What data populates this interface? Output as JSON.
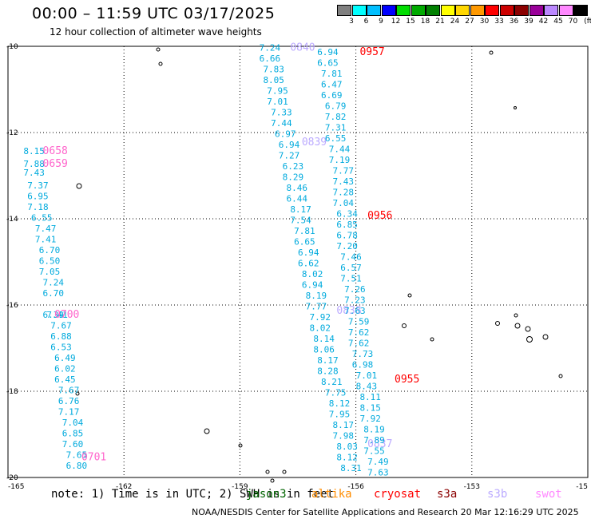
{
  "title": "00:00 – 11:59 UTC 03/17/2025",
  "subtitle": "12 hour collection of altimeter wave heights",
  "colorbar": {
    "unit": "(ft)",
    "colors": [
      "#808080",
      "#00ffff",
      "#00bfff",
      "#0000ff",
      "#00dd00",
      "#00aa00",
      "#008000",
      "#ffff00",
      "#ffd700",
      "#ff9900",
      "#ff0000",
      "#cc0000",
      "#8b0000",
      "#990099",
      "#bb88ff",
      "#ff88ff",
      "#000000"
    ],
    "labels": [
      "3",
      "6",
      "9",
      "12",
      "15",
      "18",
      "21",
      "24",
      "27",
      "30",
      "33",
      "36",
      "39",
      "42",
      "45",
      "70"
    ]
  },
  "legend": [
    {
      "label": "note:  1) Time is in UTC; 2) SWH is in feet",
      "color": "#000000"
    },
    {
      "label": "jason3",
      "color": "#006400"
    },
    {
      "label": "altika",
      "color": "#ff8c00"
    },
    {
      "label": "cryosat",
      "color": "#ff0000"
    },
    {
      "label": "s3a",
      "color": "#8b0000"
    },
    {
      "label": "s3b",
      "color": "#bbaaff"
    },
    {
      "label": "swot",
      "color": "#ff88ff"
    }
  ],
  "footer": "NOAA/NESDIS Center for Satellite Applications and Research   20 Mar 12:16:29 UTC 2025",
  "chart_data": {
    "type": "scatter",
    "xlim": [
      -165,
      -150
    ],
    "ylim": [
      -20,
      -10
    ],
    "x_ticks": [
      "-165",
      "-162",
      "-159",
      "-156",
      "-153",
      "-15"
    ],
    "y_ticks": [
      "-10",
      "-12",
      "-14",
      "-16",
      "-18",
      "-20"
    ],
    "grid": true,
    "tracks": [
      {
        "satellite": "swot",
        "color": "#00aadd",
        "label_color": "#ff66cc",
        "time_labels": [
          {
            "text": "0658",
            "lon": -164.1,
            "lat": -12.5
          },
          {
            "text": "0659",
            "lon": -164.1,
            "lat": -12.8
          },
          {
            "text": "0700",
            "lon": -163.8,
            "lat": -16.3
          },
          {
            "text": "0701",
            "lon": -163.1,
            "lat": -19.6
          }
        ],
        "values": [
          {
            "text": "8.15",
            "lon": -164.6,
            "lat": -12.5
          },
          {
            "text": "7.88",
            "lon": -164.6,
            "lat": -12.8
          },
          {
            "text": "7.43",
            "lon": -164.6,
            "lat": -13.0
          },
          {
            "text": "7.37",
            "lon": -164.5,
            "lat": -13.3
          },
          {
            "text": "6.95",
            "lon": -164.5,
            "lat": -13.55
          },
          {
            "text": "7.18",
            "lon": -164.5,
            "lat": -13.8
          },
          {
            "text": "6.55",
            "lon": -164.4,
            "lat": -14.05
          },
          {
            "text": "7.47",
            "lon": -164.3,
            "lat": -14.3
          },
          {
            "text": "7.41",
            "lon": -164.3,
            "lat": -14.55
          },
          {
            "text": "6.70",
            "lon": -164.2,
            "lat": -14.8
          },
          {
            "text": "6.50",
            "lon": -164.2,
            "lat": -15.05
          },
          {
            "text": "7.05",
            "lon": -164.2,
            "lat": -15.3
          },
          {
            "text": "7.24",
            "lon": -164.1,
            "lat": -15.55
          },
          {
            "text": "6.70",
            "lon": -164.1,
            "lat": -15.8
          },
          {
            "text": "6.39",
            "lon": -164.1,
            "lat": -16.3
          },
          {
            "text": "7.41",
            "lon": -164.0,
            "lat": -16.3
          },
          {
            "text": "7.67",
            "lon": -163.9,
            "lat": -16.55
          },
          {
            "text": "6.88",
            "lon": -163.9,
            "lat": -16.8
          },
          {
            "text": "6.53",
            "lon": -163.9,
            "lat": -17.05
          },
          {
            "text": "6.49",
            "lon": -163.8,
            "lat": -17.3
          },
          {
            "text": "6.02",
            "lon": -163.8,
            "lat": -17.55
          },
          {
            "text": "6.45",
            "lon": -163.8,
            "lat": -17.8
          },
          {
            "text": "7.67",
            "lon": -163.7,
            "lat": -18.05
          },
          {
            "text": "6.76",
            "lon": -163.7,
            "lat": -18.3
          },
          {
            "text": "7.17",
            "lon": -163.7,
            "lat": -18.55
          },
          {
            "text": "7.04",
            "lon": -163.6,
            "lat": -18.8
          },
          {
            "text": "6.85",
            "lon": -163.6,
            "lat": -19.05
          },
          {
            "text": "7.60",
            "lon": -163.6,
            "lat": -19.3
          },
          {
            "text": "7.65",
            "lon": -163.5,
            "lat": -19.55
          },
          {
            "text": "6.80",
            "lon": -163.5,
            "lat": -19.8
          }
        ]
      },
      {
        "satellite": "s3b",
        "color": "#00aadd",
        "label_color": "#bbaaff",
        "time_labels": [
          {
            "text": "0840",
            "lon": -157.7,
            "lat": -10.1
          },
          {
            "text": "0839",
            "lon": -157.4,
            "lat": -12.3
          },
          {
            "text": "0838",
            "lon": -156.5,
            "lat": -16.2
          },
          {
            "text": "0837",
            "lon": -155.7,
            "lat": -19.3
          }
        ],
        "values": [
          {
            "text": "7.24",
            "lon": -158.5,
            "lat": -10.1
          },
          {
            "text": "6.66",
            "lon": -158.5,
            "lat": -10.35
          },
          {
            "text": "7.83",
            "lon": -158.4,
            "lat": -10.6
          },
          {
            "text": "8.05",
            "lon": -158.4,
            "lat": -10.85
          },
          {
            "text": "7.95",
            "lon": -158.3,
            "lat": -11.1
          },
          {
            "text": "7.01",
            "lon": -158.3,
            "lat": -11.35
          },
          {
            "text": "7.33",
            "lon": -158.2,
            "lat": -11.6
          },
          {
            "text": "7.44",
            "lon": -158.2,
            "lat": -11.85
          },
          {
            "text": "6.97",
            "lon": -158.1,
            "lat": -12.1
          },
          {
            "text": "6.94",
            "lon": -158.0,
            "lat": -12.35
          },
          {
            "text": "7.27",
            "lon": -158.0,
            "lat": -12.6
          },
          {
            "text": "6.23",
            "lon": -157.9,
            "lat": -12.85
          },
          {
            "text": "8.29",
            "lon": -157.9,
            "lat": -13.1
          },
          {
            "text": "8.46",
            "lon": -157.8,
            "lat": -13.35
          },
          {
            "text": "6.44",
            "lon": -157.8,
            "lat": -13.6
          },
          {
            "text": "8.17",
            "lon": -157.7,
            "lat": -13.85
          },
          {
            "text": "7.54",
            "lon": -157.7,
            "lat": -14.1
          },
          {
            "text": "7.81",
            "lon": -157.6,
            "lat": -14.35
          },
          {
            "text": "6.65",
            "lon": -157.6,
            "lat": -14.6
          },
          {
            "text": "6.94",
            "lon": -157.5,
            "lat": -14.85
          },
          {
            "text": "6.62",
            "lon": -157.5,
            "lat": -15.1
          },
          {
            "text": "8.02",
            "lon": -157.4,
            "lat": -15.35
          },
          {
            "text": "6.94",
            "lon": -157.4,
            "lat": -15.6
          },
          {
            "text": "8.19",
            "lon": -157.3,
            "lat": -15.85
          },
          {
            "text": "7.77",
            "lon": -157.3,
            "lat": -16.1
          },
          {
            "text": "7.92",
            "lon": -157.2,
            "lat": -16.35
          },
          {
            "text": "8.02",
            "lon": -157.2,
            "lat": -16.6
          },
          {
            "text": "8.14",
            "lon": -157.1,
            "lat": -16.85
          },
          {
            "text": "8.06",
            "lon": -157.1,
            "lat": -17.1
          },
          {
            "text": "8.17",
            "lon": -157.0,
            "lat": -17.35
          },
          {
            "text": "8.28",
            "lon": -157.0,
            "lat": -17.6
          },
          {
            "text": "8.21",
            "lon": -156.9,
            "lat": -17.85
          },
          {
            "text": "7.75",
            "lon": -156.8,
            "lat": -18.1
          },
          {
            "text": "8.12",
            "lon": -156.7,
            "lat": -18.35
          },
          {
            "text": "7.95",
            "lon": -156.7,
            "lat": -18.6
          },
          {
            "text": "8.17",
            "lon": -156.6,
            "lat": -18.85
          },
          {
            "text": "7.98",
            "lon": -156.6,
            "lat": -19.1
          },
          {
            "text": "8.03",
            "lon": -156.5,
            "lat": -19.35
          },
          {
            "text": "8.12",
            "lon": -156.5,
            "lat": -19.6
          },
          {
            "text": "8.31",
            "lon": -156.4,
            "lat": -19.85
          }
        ]
      },
      {
        "satellite": "cryosat",
        "color": "#00aadd",
        "label_color": "#ff0000",
        "time_labels": [
          {
            "text": "0957",
            "lon": -155.9,
            "lat": -10.2
          },
          {
            "text": "0956",
            "lon": -155.7,
            "lat": -14.0
          },
          {
            "text": "0955",
            "lon": -155.0,
            "lat": -17.8
          }
        ],
        "values": [
          {
            "text": "6.94",
            "lon": -157.0,
            "lat": -10.2
          },
          {
            "text": "6.65",
            "lon": -157.0,
            "lat": -10.45
          },
          {
            "text": "7.81",
            "lon": -156.9,
            "lat": -10.7
          },
          {
            "text": "6.47",
            "lon": -156.9,
            "lat": -10.95
          },
          {
            "text": "6.69",
            "lon": -156.9,
            "lat": -11.2
          },
          {
            "text": "6.79",
            "lon": -156.8,
            "lat": -11.45
          },
          {
            "text": "7.82",
            "lon": -156.8,
            "lat": -11.7
          },
          {
            "text": "7.31",
            "lon": -156.8,
            "lat": -11.95
          },
          {
            "text": "6.55",
            "lon": -156.8,
            "lat": -12.2
          },
          {
            "text": "7.44",
            "lon": -156.7,
            "lat": -12.45
          },
          {
            "text": "7.19",
            "lon": -156.7,
            "lat": -12.7
          },
          {
            "text": "7.77",
            "lon": -156.6,
            "lat": -12.95
          },
          {
            "text": "7.43",
            "lon": -156.6,
            "lat": -13.2
          },
          {
            "text": "7.28",
            "lon": -156.6,
            "lat": -13.45
          },
          {
            "text": "7.04",
            "lon": -156.6,
            "lat": -13.7
          },
          {
            "text": "6.34",
            "lon": -156.5,
            "lat": -13.95
          },
          {
            "text": "6.85",
            "lon": -156.5,
            "lat": -14.2
          },
          {
            "text": "6.78",
            "lon": -156.5,
            "lat": -14.45
          },
          {
            "text": "7.20",
            "lon": -156.5,
            "lat": -14.7
          },
          {
            "text": "7.46",
            "lon": -156.4,
            "lat": -14.95
          },
          {
            "text": "6.57",
            "lon": -156.4,
            "lat": -15.2
          },
          {
            "text": "7.51",
            "lon": -156.4,
            "lat": -15.45
          },
          {
            "text": "7.26",
            "lon": -156.3,
            "lat": -15.7
          },
          {
            "text": "7.23",
            "lon": -156.3,
            "lat": -15.95
          },
          {
            "text": "7.63",
            "lon": -156.3,
            "lat": -16.2
          },
          {
            "text": "7.59",
            "lon": -156.2,
            "lat": -16.45
          },
          {
            "text": "7.62",
            "lon": -156.2,
            "lat": -16.7
          },
          {
            "text": "7.62",
            "lon": -156.2,
            "lat": -16.95
          },
          {
            "text": "7.73",
            "lon": -156.1,
            "lat": -17.2
          },
          {
            "text": "6.98",
            "lon": -156.1,
            "lat": -17.45
          },
          {
            "text": "7.01",
            "lon": -156.0,
            "lat": -17.7
          },
          {
            "text": "8.43",
            "lon": -156.0,
            "lat": -17.95
          },
          {
            "text": "8.11",
            "lon": -155.9,
            "lat": -18.2
          },
          {
            "text": "8.15",
            "lon": -155.9,
            "lat": -18.45
          },
          {
            "text": "7.92",
            "lon": -155.9,
            "lat": -18.7
          },
          {
            "text": "8.19",
            "lon": -155.8,
            "lat": -18.95
          },
          {
            "text": "7.89",
            "lon": -155.8,
            "lat": -19.2
          },
          {
            "text": "7.55",
            "lon": -155.8,
            "lat": -19.45
          },
          {
            "text": "7.49",
            "lon": -155.7,
            "lat": -19.7
          },
          {
            "text": "7.63",
            "lon": -155.7,
            "lat": -19.95
          }
        ]
      }
    ]
  }
}
